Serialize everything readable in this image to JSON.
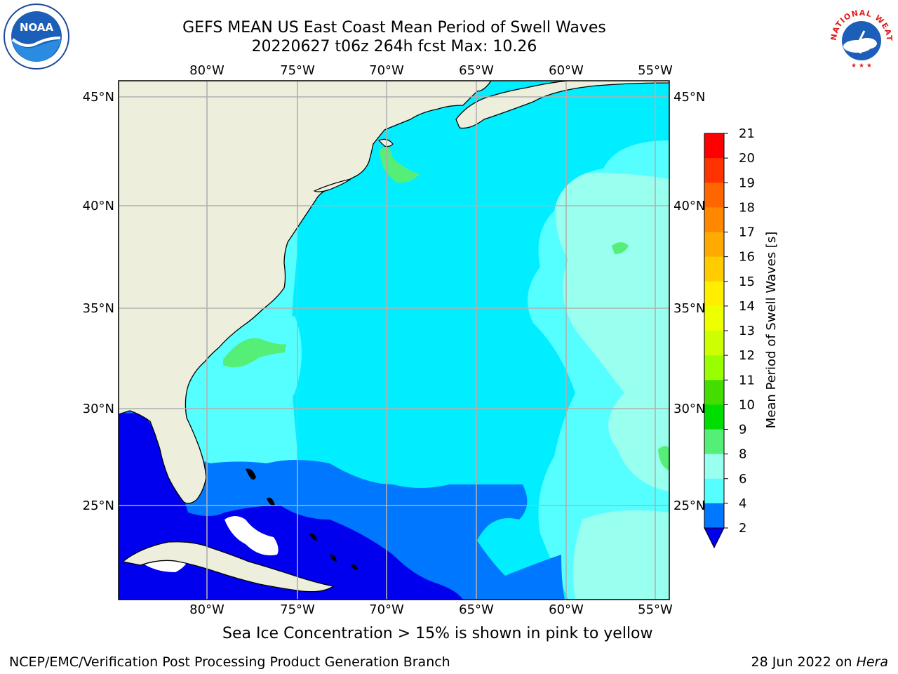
{
  "title_line1": "GEFS MEAN US East Coast Mean Period of Swell Waves",
  "title_line2": "20220627 t06z 264h fcst   Max: 10.26",
  "logos": {
    "left": "noaa-logo",
    "right": "national-weather-service-logo",
    "noaa_text": "NOAA",
    "nws_ring_text": "NATIONAL WEATHER SERVICE"
  },
  "map": {
    "lon_labels": [
      "80°W",
      "75°W",
      "70°W",
      "65°W",
      "60°W",
      "55°W"
    ],
    "lat_labels": [
      "45°N",
      "40°N",
      "35°N",
      "30°N",
      "25°N"
    ],
    "lon_range": [
      -85,
      -54.3
    ],
    "lat_range": [
      20.5,
      45.8
    ],
    "colors": {
      "land": "#eeeedd",
      "grid": "#b0b0b0",
      "coast": "#000000"
    }
  },
  "colorbar": {
    "label": "Mean Period of Swell Waves [s]",
    "ticks": [
      "21",
      "20",
      "19",
      "18",
      "17",
      "16",
      "15",
      "14",
      "13",
      "12",
      "11",
      "10",
      "9",
      "8",
      "6",
      "4",
      "2"
    ],
    "colors": [
      "#ff0000",
      "#ff3300",
      "#ff6600",
      "#ff8800",
      "#ffaa00",
      "#ffcc00",
      "#ffee00",
      "#eeff00",
      "#ccff00",
      "#99ff00",
      "#44dd00",
      "#00dd00",
      "#55ee77",
      "#99ffee",
      "#55ffff",
      "#00eeff",
      "#0077ff"
    ],
    "under_color": "#0000ee"
  },
  "caption": "Sea Ice Concentration > 15% is shown in pink to yellow",
  "footer_left": "NCEP/EMC/Verification Post Processing Product Generation Branch",
  "footer_right_date": "28 Jun 2022 on ",
  "footer_right_machine": "Hera"
}
